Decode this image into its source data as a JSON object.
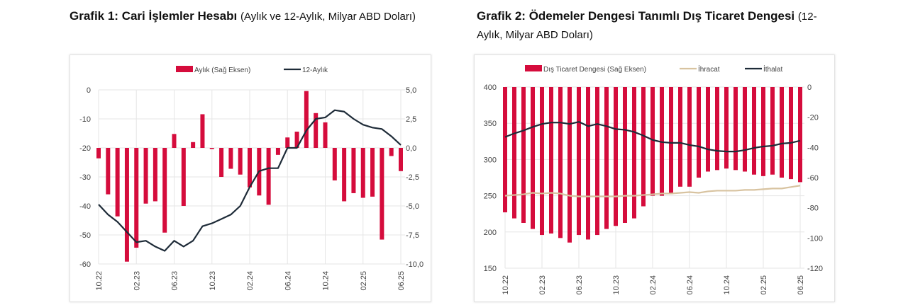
{
  "chart_data": [
    {
      "type": "bar+line",
      "title": "Grafik 1: Cari İşlemler Hesabı",
      "subtitle": "(Aylık ve 12-Aylık, Milyar ABD Doları)",
      "x": [
        "10.22",
        "11.22",
        "12.22",
        "01.23",
        "02.23",
        "03.23",
        "04.23",
        "05.23",
        "06.23",
        "07.23",
        "08.23",
        "09.23",
        "10.23",
        "11.23",
        "12.23",
        "01.24",
        "02.24",
        "03.24",
        "04.24",
        "05.24",
        "06.24",
        "07.24",
        "08.24",
        "09.24",
        "10.24",
        "11.24",
        "12.24",
        "01.25",
        "02.25",
        "03.25",
        "04.25",
        "05.25",
        "06.25"
      ],
      "xticks": [
        "10.22",
        "02.23",
        "06.23",
        "10.23",
        "02.24",
        "06.24",
        "10.24",
        "02.25",
        "06.25"
      ],
      "left_axis": {
        "ylim": [
          -60,
          0
        ],
        "ticks": [
          "0",
          "-10",
          "-20",
          "-30",
          "-40",
          "-50",
          "-60"
        ]
      },
      "right_axis": {
        "ylim": [
          -10,
          5
        ],
        "ticks": [
          "5,0",
          "2,5",
          "0,0",
          "-2,5",
          "-5,0",
          "-7,5",
          "-10,0"
        ]
      },
      "grid": true,
      "legend": "top",
      "series": [
        {
          "name": "Aylık (Sağ Eksen)",
          "type": "bar",
          "axis": "right",
          "color": "#d50c3c",
          "values": [
            -0.9,
            -4.0,
            -5.9,
            -9.8,
            -8.6,
            -4.8,
            -4.6,
            -7.3,
            1.2,
            -5.0,
            0.5,
            2.9,
            -0.1,
            -2.5,
            -1.8,
            -2.3,
            -3.4,
            -4.1,
            -4.9,
            -0.6,
            0.9,
            1.4,
            4.9,
            3.0,
            2.2,
            -2.8,
            -4.6,
            -3.9,
            -4.3,
            -4.2,
            -7.9,
            -0.7,
            -2.0
          ]
        },
        {
          "name": "12-Aylık",
          "type": "line",
          "axis": "left",
          "color": "#1e2b38",
          "values": [
            -39.5,
            -43,
            -45.5,
            -49,
            -52.5,
            -52,
            -54,
            -55.5,
            -52,
            -54,
            -52,
            -47,
            -46,
            -44.5,
            -43,
            -40,
            -33.5,
            -28,
            -27,
            -27,
            -20,
            -20,
            -14,
            -10,
            -9.5,
            -7,
            -7.5,
            -10,
            -12,
            -13,
            -13.5,
            -16,
            -19
          ]
        }
      ]
    },
    {
      "type": "bar+line",
      "title": "Grafik 2: Ödemeler Dengesi Tanımlı Dış Ticaret Dengesi",
      "subtitle": "(12-Aylık, Milyar ABD Doları)",
      "x": [
        "10.22",
        "11.22",
        "12.22",
        "01.23",
        "02.23",
        "03.23",
        "04.23",
        "05.23",
        "06.23",
        "07.23",
        "08.23",
        "09.23",
        "10.23",
        "11.23",
        "12.23",
        "01.24",
        "02.24",
        "03.24",
        "04.24",
        "05.24",
        "06.24",
        "07.24",
        "08.24",
        "09.24",
        "10.24",
        "11.24",
        "12.24",
        "01.25",
        "02.25",
        "03.25",
        "04.25",
        "05.25",
        "06.25"
      ],
      "xticks": [
        "10.22",
        "02.23",
        "06.23",
        "10.23",
        "02.24",
        "06.24",
        "10.24",
        "02.25",
        "06.25"
      ],
      "left_axis": {
        "ylim": [
          150,
          400
        ],
        "ticks": [
          "400",
          "350",
          "300",
          "250",
          "200",
          "150"
        ]
      },
      "right_axis": {
        "ylim": [
          -120,
          0
        ],
        "ticks": [
          "0",
          "-20",
          "-40",
          "-60",
          "-80",
          "-100",
          "-120"
        ]
      },
      "grid": true,
      "legend": "top",
      "series": [
        {
          "name": "Dış Ticaret Dengesi (Sağ Eksen)",
          "type": "bar",
          "axis": "right",
          "color": "#d50c3c",
          "values": [
            -83,
            -87,
            -90,
            -94,
            -98,
            -97,
            -100,
            -103,
            -98,
            -101,
            -98,
            -94,
            -92,
            -90,
            -87,
            -79,
            -72,
            -72,
            -71,
            -66,
            -66,
            -60,
            -56,
            -55,
            -54,
            -55,
            -56,
            -58,
            -59,
            -58,
            -60,
            -61,
            -63
          ]
        },
        {
          "name": "İhracat",
          "type": "line",
          "axis": "left",
          "color": "#d8c3a0",
          "values": [
            250,
            251,
            252,
            254,
            253,
            254,
            253,
            250,
            249,
            249,
            249,
            249,
            249,
            250,
            250,
            251,
            252,
            253,
            253,
            254,
            255,
            254,
            256,
            257,
            257,
            257,
            258,
            258,
            259,
            260,
            260,
            262,
            264
          ]
        },
        {
          "name": "İthalat",
          "type": "line",
          "axis": "left",
          "color": "#1e2b38",
          "values": [
            331,
            336,
            340,
            345,
            349,
            351,
            351,
            349,
            352,
            346,
            349,
            346,
            342,
            341,
            338,
            333,
            327,
            324,
            323,
            323,
            320,
            318,
            314,
            312,
            311,
            311,
            313,
            316,
            318,
            319,
            322,
            323,
            326
          ]
        }
      ]
    }
  ]
}
